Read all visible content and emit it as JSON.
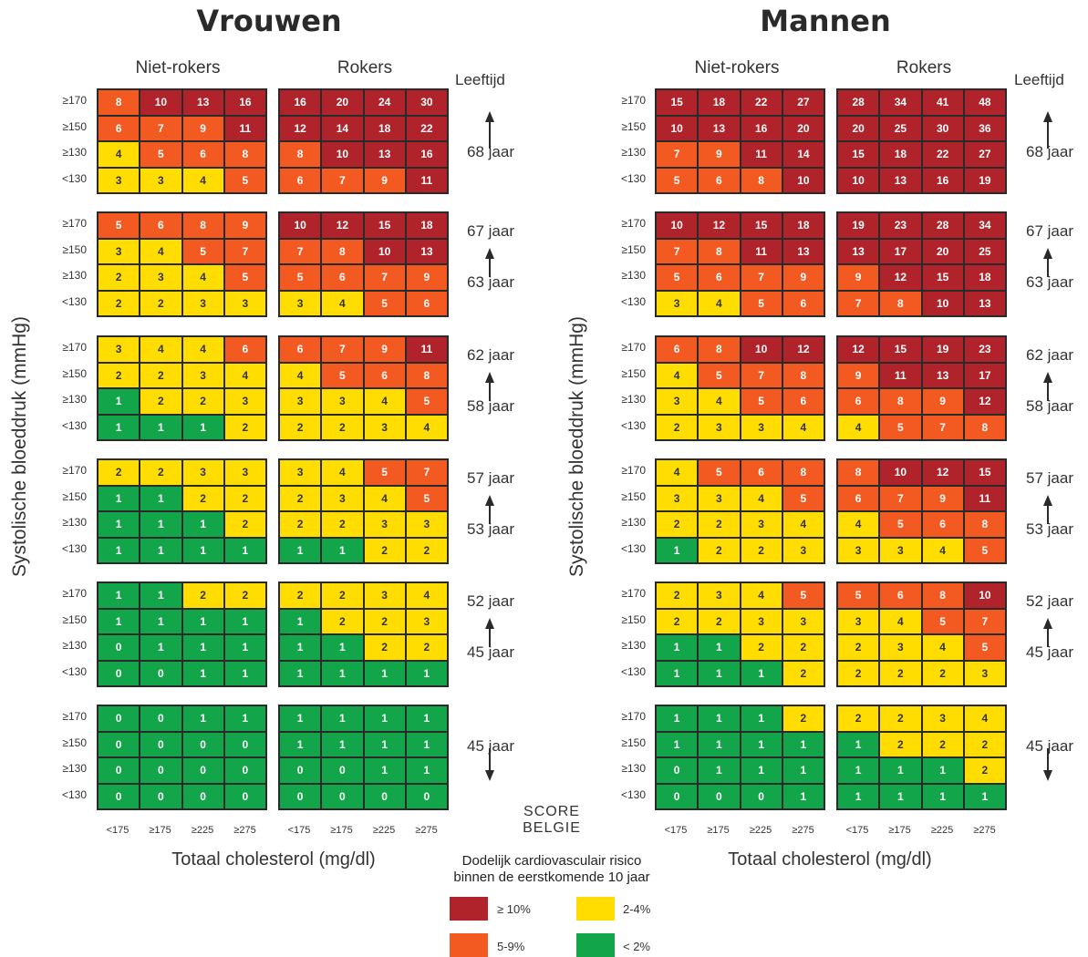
{
  "titles": {
    "women": "Vrouwen",
    "men": "Mannen"
  },
  "column_headers": {
    "non_smokers": "Niet-rokers",
    "smokers": "Rokers"
  },
  "age_header": "Leeftijd",
  "y_axis_label": "Systolische bloeddruk (mmHg)",
  "x_axis_label": "Totaal cholesterol (mg/dl)",
  "row_labels": [
    "≥170",
    "≥150",
    "≥130",
    "<130"
  ],
  "col_labels": [
    "<175",
    "≥175",
    "≥225",
    "≥275"
  ],
  "logo": {
    "line1": "SCORE",
    "line2": "BELGIE"
  },
  "legend": {
    "title_line1": "Dodelijk cardiovasculair risico",
    "title_line2": "binnen de eerstkomende 10 jaar",
    "items": [
      {
        "label": "≥ 10%",
        "color": "#B0232A"
      },
      {
        "label": "2-4%",
        "color": "#FFDD00"
      },
      {
        "label": "5-9%",
        "color": "#F25A22"
      },
      {
        "label": "< 2%",
        "color": "#13A54A"
      }
    ]
  },
  "age_bands": [
    {
      "top": "",
      "bottom": "68 jaar",
      "arrow": "up"
    },
    {
      "top": "67 jaar",
      "bottom": "63 jaar",
      "arrow": "up"
    },
    {
      "top": "62 jaar",
      "bottom": "58 jaar",
      "arrow": "up"
    },
    {
      "top": "57 jaar",
      "bottom": "53 jaar",
      "arrow": "up"
    },
    {
      "top": "52 jaar",
      "bottom": "45 jaar",
      "arrow": "up"
    },
    {
      "top": "45 jaar",
      "bottom": "",
      "arrow": "down"
    }
  ],
  "chart_data": {
    "type": "heatmap",
    "title": "",
    "rows": [
      "≥170",
      "≥150",
      "≥130",
      "<130"
    ],
    "columns": [
      "<175",
      "≥175",
      "≥225",
      "≥275"
    ],
    "ylabel": "Systolische bloeddruk (mmHg)",
    "xlabel": "Totaal cholesterol (mg/dl)",
    "color_scale": {
      "red": "#B0232A",
      "orange": "#F25A22",
      "yellow": "#FFDD00",
      "green": "#13A54A"
    },
    "women": {
      "non_smokers": [
        [
          [
            8,
            10,
            13,
            16
          ],
          [
            6,
            7,
            9,
            11
          ],
          [
            4,
            5,
            6,
            8
          ],
          [
            3,
            3,
            4,
            5
          ]
        ],
        [
          [
            5,
            6,
            8,
            9
          ],
          [
            3,
            4,
            5,
            7
          ],
          [
            2,
            3,
            4,
            5
          ],
          [
            2,
            2,
            3,
            3
          ]
        ],
        [
          [
            3,
            4,
            4,
            6
          ],
          [
            2,
            2,
            3,
            4
          ],
          [
            1,
            2,
            2,
            3
          ],
          [
            1,
            1,
            1,
            2
          ]
        ],
        [
          [
            2,
            2,
            3,
            3
          ],
          [
            1,
            1,
            2,
            2
          ],
          [
            1,
            1,
            1,
            2
          ],
          [
            1,
            1,
            1,
            1
          ]
        ],
        [
          [
            1,
            1,
            2,
            2
          ],
          [
            1,
            1,
            1,
            1
          ],
          [
            0,
            1,
            1,
            1
          ],
          [
            0,
            0,
            1,
            1
          ]
        ],
        [
          [
            0,
            0,
            1,
            1
          ],
          [
            0,
            0,
            0,
            0
          ],
          [
            0,
            0,
            0,
            0
          ],
          [
            0,
            0,
            0,
            0
          ]
        ]
      ],
      "smokers": [
        [
          [
            16,
            20,
            24,
            30
          ],
          [
            12,
            14,
            18,
            22
          ],
          [
            8,
            10,
            13,
            16
          ],
          [
            6,
            7,
            9,
            11
          ]
        ],
        [
          [
            10,
            12,
            15,
            18
          ],
          [
            7,
            8,
            10,
            13
          ],
          [
            5,
            6,
            7,
            9
          ],
          [
            3,
            4,
            5,
            6
          ]
        ],
        [
          [
            6,
            7,
            9,
            11
          ],
          [
            4,
            5,
            6,
            8
          ],
          [
            3,
            3,
            4,
            5
          ],
          [
            2,
            2,
            3,
            4
          ]
        ],
        [
          [
            3,
            4,
            5,
            7
          ],
          [
            2,
            3,
            4,
            5
          ],
          [
            2,
            2,
            3,
            3
          ],
          [
            1,
            1,
            2,
            2
          ]
        ],
        [
          [
            2,
            2,
            3,
            4
          ],
          [
            1,
            2,
            2,
            3
          ],
          [
            1,
            1,
            2,
            2
          ],
          [
            1,
            1,
            1,
            1
          ]
        ],
        [
          [
            1,
            1,
            1,
            1
          ],
          [
            1,
            1,
            1,
            1
          ],
          [
            0,
            0,
            1,
            1
          ],
          [
            0,
            0,
            0,
            0
          ]
        ]
      ]
    },
    "men": {
      "non_smokers": [
        [
          [
            15,
            18,
            22,
            27
          ],
          [
            10,
            13,
            16,
            20
          ],
          [
            7,
            9,
            11,
            14
          ],
          [
            5,
            6,
            8,
            10
          ]
        ],
        [
          [
            10,
            12,
            15,
            18
          ],
          [
            7,
            8,
            11,
            13
          ],
          [
            5,
            6,
            7,
            9
          ],
          [
            3,
            4,
            5,
            6
          ]
        ],
        [
          [
            6,
            8,
            10,
            12
          ],
          [
            4,
            5,
            7,
            8
          ],
          [
            3,
            4,
            5,
            6
          ],
          [
            2,
            3,
            3,
            4
          ]
        ],
        [
          [
            4,
            5,
            6,
            8
          ],
          [
            3,
            3,
            4,
            5
          ],
          [
            2,
            2,
            3,
            4
          ],
          [
            1,
            2,
            2,
            3
          ]
        ],
        [
          [
            2,
            3,
            4,
            5
          ],
          [
            2,
            2,
            3,
            3
          ],
          [
            1,
            1,
            2,
            2
          ],
          [
            1,
            1,
            1,
            2
          ]
        ],
        [
          [
            1,
            1,
            1,
            2
          ],
          [
            1,
            1,
            1,
            1
          ],
          [
            0,
            1,
            1,
            1
          ],
          [
            0,
            0,
            0,
            1
          ]
        ]
      ],
      "smokers": [
        [
          [
            28,
            34,
            41,
            48
          ],
          [
            20,
            25,
            30,
            36
          ],
          [
            15,
            18,
            22,
            27
          ],
          [
            10,
            13,
            16,
            19
          ]
        ],
        [
          [
            19,
            23,
            28,
            34
          ],
          [
            13,
            17,
            20,
            25
          ],
          [
            9,
            12,
            15,
            18
          ],
          [
            7,
            8,
            10,
            13
          ]
        ],
        [
          [
            12,
            15,
            19,
            23
          ],
          [
            9,
            11,
            13,
            17
          ],
          [
            6,
            8,
            9,
            12
          ],
          [
            4,
            5,
            7,
            8
          ]
        ],
        [
          [
            8,
            10,
            12,
            15
          ],
          [
            6,
            7,
            9,
            11
          ],
          [
            4,
            5,
            6,
            8
          ],
          [
            3,
            3,
            4,
            5
          ]
        ],
        [
          [
            5,
            6,
            8,
            10
          ],
          [
            3,
            4,
            5,
            7
          ],
          [
            2,
            3,
            4,
            5
          ],
          [
            2,
            2,
            2,
            3
          ]
        ],
        [
          [
            2,
            2,
            3,
            4
          ],
          [
            1,
            2,
            2,
            2
          ],
          [
            1,
            1,
            1,
            2
          ],
          [
            1,
            1,
            1,
            1
          ]
        ]
      ]
    }
  }
}
